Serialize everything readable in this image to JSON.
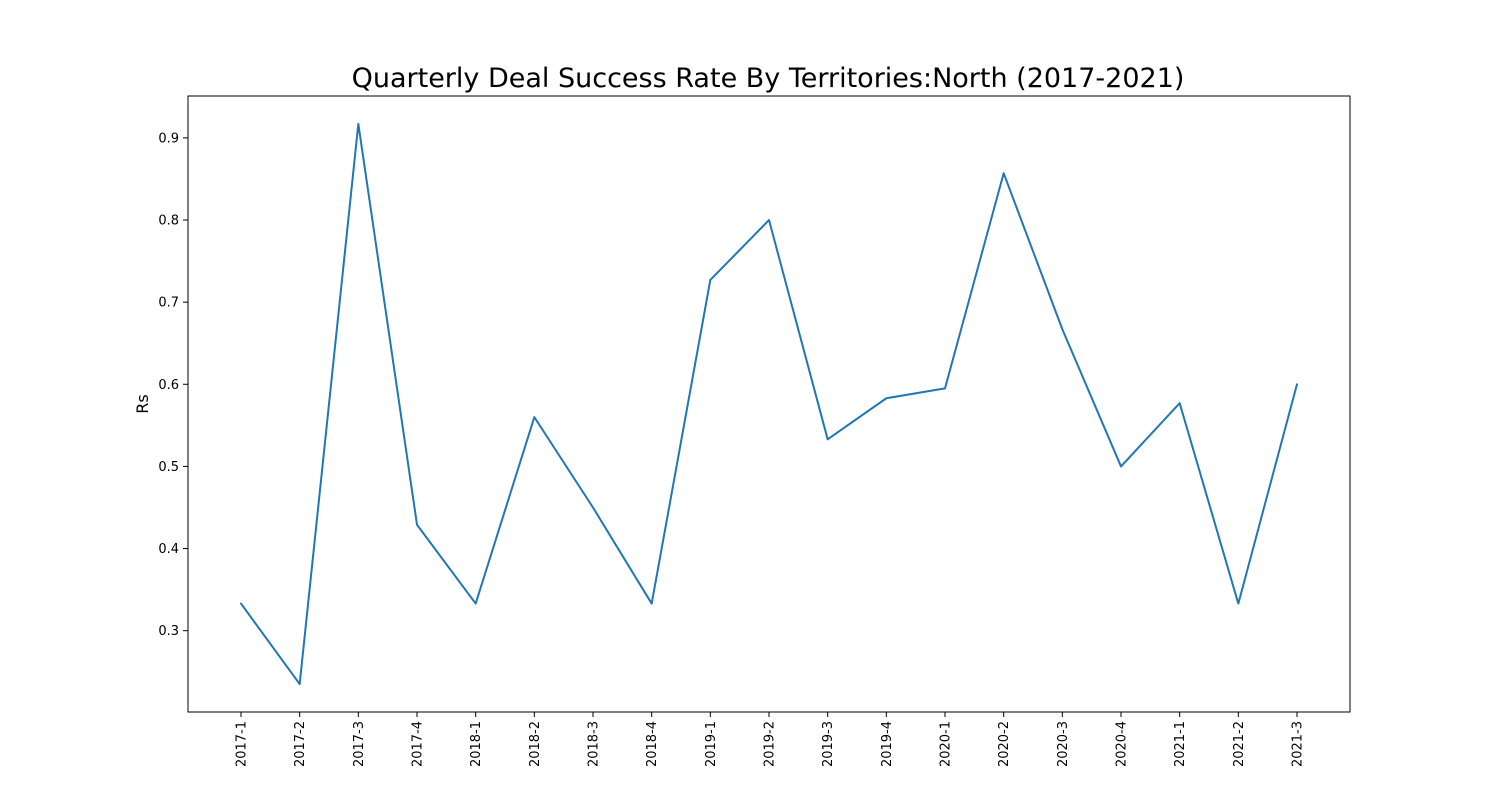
{
  "chart_data": {
    "type": "line",
    "title": "Quarterly Deal Success Rate By Territories:North (2017-2021)",
    "xlabel": "",
    "ylabel": "Rs",
    "categories": [
      "2017-1",
      "2017-2",
      "2017-3",
      "2017-4",
      "2018-1",
      "2018-2",
      "2018-3",
      "2018-4",
      "2019-1",
      "2019-2",
      "2019-3",
      "2019-4",
      "2020-1",
      "2020-2",
      "2020-3",
      "2020-4",
      "2021-1",
      "2021-2",
      "2021-3"
    ],
    "series": [
      {
        "values": [
          0.333,
          0.235,
          0.917,
          0.429,
          0.333,
          0.56,
          0.45,
          0.333,
          0.727,
          0.8,
          0.533,
          0.583,
          0.595,
          0.857,
          0.667,
          0.5,
          0.577,
          0.333,
          0.6
        ],
        "color": "#1f77b4"
      }
    ],
    "yticks": [
      0.3,
      0.4,
      0.5,
      0.6,
      0.7,
      0.8,
      0.9
    ],
    "ytick_labels": [
      "0.3",
      "0.4",
      "0.5",
      "0.6",
      "0.7",
      "0.8",
      "0.9"
    ],
    "ylim": [
      0.201,
      0.951
    ],
    "grid": false,
    "legend": "none"
  }
}
